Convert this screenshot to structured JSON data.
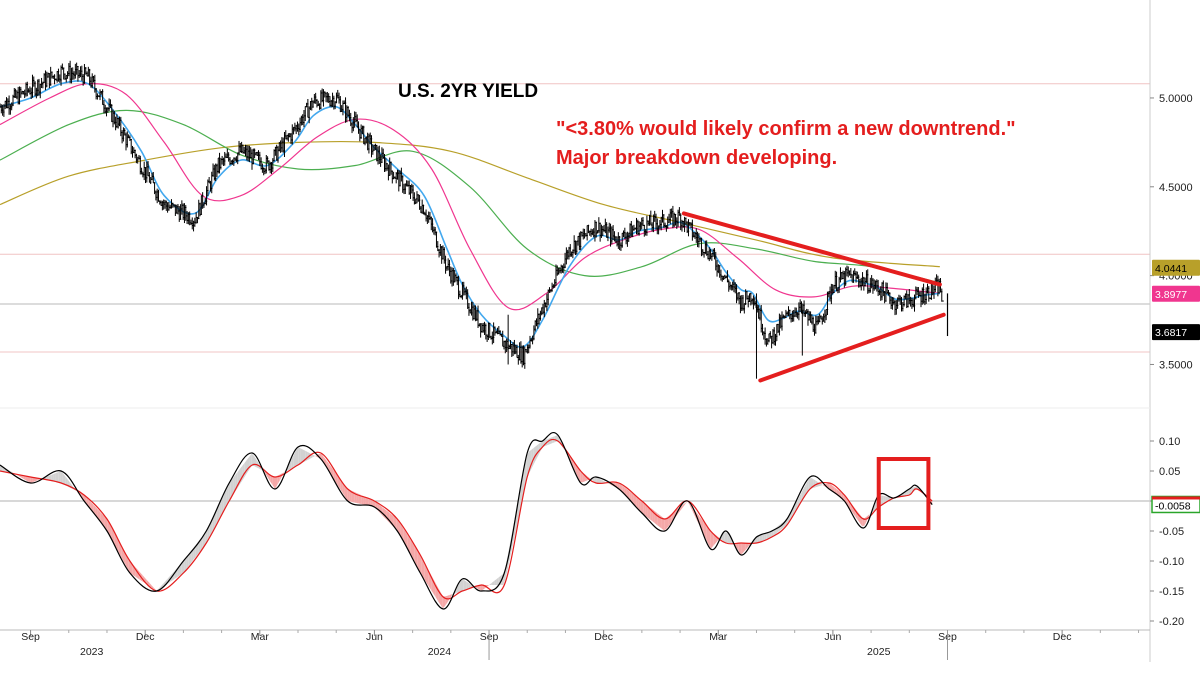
{
  "chart_data": [
    {
      "type": "line",
      "title": "U.S. 2YR YIELD",
      "annotation_lines": [
        "\"<3.80% would likely confirm a new downtrend.\"",
        "Major breakdown developing."
      ],
      "ylim": [
        3.3,
        5.45
      ],
      "y_ticks": [
        "5.0000",
        "4.5000",
        "4.0000",
        "3.5000"
      ],
      "y_tick_values": [
        5.0,
        4.5,
        4.0,
        3.5
      ],
      "horizontal_levels": [
        5.08,
        4.12,
        3.84,
        3.57
      ],
      "x_ticks": [
        "Sep",
        "Dec",
        "Mar",
        "Jun",
        "Sep",
        "Dec",
        "Mar",
        "Jun",
        "Sep",
        "Dec"
      ],
      "x_tick_months": [
        0,
        3,
        6,
        9,
        12,
        15,
        18,
        21,
        24,
        27
      ],
      "x_year_labels": [
        {
          "label": "2023",
          "month": 1.6
        },
        {
          "label": "2024",
          "month": 10.7
        },
        {
          "label": "2025",
          "month": 22.2
        }
      ],
      "x_month_range": [
        -0.8,
        29.3
      ],
      "last_values": [
        {
          "label": "4.0441",
          "value": 4.0441,
          "color": "#b8a02a"
        },
        {
          "label": "3.8977",
          "value": 3.8977,
          "color": "#f0368f"
        },
        {
          "label": "3.6817",
          "value": 3.6817,
          "color": "#000000"
        }
      ],
      "trendlines": [
        {
          "from": [
            17.1,
            4.35
          ],
          "to": [
            23.8,
            3.95
          ]
        },
        {
          "from": [
            19.1,
            3.41
          ],
          "to": [
            23.9,
            3.78
          ]
        }
      ],
      "series": [
        {
          "color": "#000000",
          "x": [
            -0.8,
            0.0,
            0.8,
            1.5,
            2.2,
            2.9,
            3.5,
            4.3,
            4.9,
            5.5,
            6.2,
            6.9,
            7.4,
            8.0,
            8.5,
            9.0,
            9.6,
            10.3,
            10.9,
            11.3,
            11.8,
            12.4,
            12.9,
            13.4,
            14.1,
            14.8,
            15.4,
            15.9,
            16.5,
            17.0,
            17.4,
            17.8,
            18.2,
            18.6,
            18.9,
            19.3,
            19.7,
            20.1,
            20.6,
            21.0,
            21.4,
            21.8,
            22.2,
            22.6,
            23.0,
            23.4,
            23.8,
            24.0
          ],
          "y": [
            4.95,
            5.05,
            5.15,
            5.12,
            4.88,
            4.62,
            4.4,
            4.32,
            4.62,
            4.7,
            4.62,
            4.82,
            4.98,
            5.0,
            4.85,
            4.7,
            4.55,
            4.38,
            4.05,
            3.9,
            3.72,
            3.62,
            3.55,
            3.82,
            4.15,
            4.28,
            4.2,
            4.28,
            4.3,
            4.33,
            4.22,
            4.12,
            3.98,
            3.85,
            3.9,
            3.62,
            3.75,
            3.82,
            3.7,
            3.95,
            4.0,
            3.97,
            3.93,
            3.85,
            3.86,
            3.9,
            3.94,
            3.68
          ]
        },
        {
          "color": "#43a8ee",
          "x": [
            -0.8,
            0.0,
            0.8,
            1.5,
            2.2,
            2.9,
            3.5,
            4.3,
            4.9,
            5.5,
            6.2,
            6.9,
            7.4,
            8.0,
            8.5,
            9.0,
            9.6,
            10.3,
            10.9,
            11.3,
            11.8,
            12.4,
            12.9,
            13.4,
            14.1,
            14.8,
            15.4,
            15.9,
            16.5,
            17.0,
            17.4,
            17.8,
            18.2,
            18.6,
            18.9,
            19.3,
            19.7,
            20.1,
            20.6,
            21.0,
            21.4,
            21.8,
            22.2,
            22.6,
            23.0,
            23.4,
            23.8
          ],
          "y": [
            4.95,
            5.0,
            5.08,
            5.08,
            4.92,
            4.7,
            4.45,
            4.35,
            4.55,
            4.65,
            4.62,
            4.75,
            4.9,
            4.95,
            4.85,
            4.72,
            4.6,
            4.45,
            4.15,
            3.95,
            3.78,
            3.66,
            3.6,
            3.75,
            4.05,
            4.22,
            4.2,
            4.25,
            4.27,
            4.3,
            4.24,
            4.15,
            4.02,
            3.92,
            3.9,
            3.75,
            3.76,
            3.8,
            3.78,
            3.9,
            3.97,
            3.96,
            3.93,
            3.87,
            3.87,
            3.89,
            3.9
          ]
        },
        {
          "color": "#f0368f",
          "x": [
            -0.8,
            0.5,
            1.5,
            2.5,
            3.5,
            4.5,
            5.5,
            6.5,
            7.5,
            8.5,
            9.5,
            10.5,
            11.5,
            12.5,
            13.5,
            14.5,
            15.5,
            16.5,
            17.5,
            18.5,
            19.5,
            20.5,
            21.5,
            22.5,
            23.8
          ],
          "y": [
            4.85,
            5.0,
            5.08,
            5.02,
            4.75,
            4.45,
            4.45,
            4.6,
            4.78,
            4.88,
            4.82,
            4.6,
            4.15,
            3.82,
            3.9,
            4.1,
            4.2,
            4.26,
            4.26,
            4.1,
            3.92,
            3.88,
            3.94,
            3.93,
            3.9
          ]
        },
        {
          "color": "#4caf50",
          "x": [
            -0.8,
            1.0,
            2.5,
            4.0,
            5.5,
            7.0,
            8.5,
            10.0,
            11.5,
            13.0,
            14.5,
            16.0,
            17.5,
            19.0,
            20.5,
            22.0,
            23.8
          ],
          "y": [
            4.65,
            4.85,
            4.93,
            4.85,
            4.68,
            4.6,
            4.62,
            4.7,
            4.5,
            4.15,
            4.0,
            4.05,
            4.18,
            4.15,
            4.08,
            4.05,
            3.96
          ]
        },
        {
          "color": "#b8a02a",
          "x": [
            -0.8,
            1.0,
            3.0,
            5.0,
            7.0,
            9.0,
            11.0,
            13.0,
            15.0,
            17.0,
            19.0,
            21.0,
            23.8
          ],
          "y": [
            4.4,
            4.56,
            4.65,
            4.72,
            4.75,
            4.75,
            4.7,
            4.55,
            4.4,
            4.3,
            4.2,
            4.1,
            4.05
          ]
        }
      ]
    },
    {
      "type": "area",
      "ylim": [
        -0.215,
        0.135
      ],
      "y_ticks": [
        "0.10",
        "0.05",
        "0.00",
        "-0.05",
        "-0.10",
        "-0.15",
        "-0.20"
      ],
      "y_tick_values": [
        0.1,
        0.05,
        0.0,
        -0.05,
        -0.1,
        -0.15,
        -0.2
      ],
      "zero_line": 0.0,
      "last_value": {
        "label": "-0.0058",
        "value": -0.0058,
        "color": "#2aa52a"
      },
      "highlight_box": {
        "x": [
          22.2,
          23.5
        ],
        "y": [
          0.07,
          -0.045
        ],
        "color": "#e41e1e"
      },
      "series": [
        {
          "color": "#000000",
          "x": [
            -0.8,
            0.0,
            0.8,
            1.4,
            2.0,
            2.6,
            3.3,
            4.0,
            4.6,
            5.2,
            5.8,
            6.4,
            7.0,
            7.6,
            8.3,
            9.0,
            9.6,
            10.2,
            10.8,
            11.3,
            11.8,
            12.4,
            13.0,
            13.4,
            13.8,
            14.4,
            14.8,
            15.4,
            16.0,
            16.6,
            17.2,
            17.8,
            18.2,
            18.6,
            19.0,
            19.4,
            19.8,
            20.4,
            20.9,
            21.3,
            21.8,
            22.2,
            22.6,
            23.0,
            23.2,
            23.6
          ],
          "y": [
            0.06,
            0.03,
            0.05,
            0.0,
            -0.05,
            -0.12,
            -0.15,
            -0.1,
            -0.05,
            0.03,
            0.08,
            0.02,
            0.09,
            0.07,
            0.0,
            -0.01,
            -0.05,
            -0.12,
            -0.18,
            -0.13,
            -0.15,
            -0.12,
            0.08,
            0.1,
            0.11,
            0.03,
            0.04,
            0.02,
            -0.02,
            -0.05,
            0.0,
            -0.08,
            -0.05,
            -0.09,
            -0.06,
            -0.05,
            -0.03,
            0.04,
            0.02,
            0.0,
            -0.045,
            0.01,
            0.005,
            0.02,
            0.025,
            -0.006
          ]
        },
        {
          "color": "#e41e1e",
          "x": [
            -0.8,
            0.0,
            0.8,
            1.4,
            2.0,
            2.6,
            3.3,
            4.0,
            4.6,
            5.2,
            5.8,
            6.4,
            7.0,
            7.6,
            8.3,
            9.0,
            9.6,
            10.2,
            10.8,
            11.3,
            11.8,
            12.4,
            13.0,
            13.4,
            13.8,
            14.4,
            14.8,
            15.4,
            16.0,
            16.6,
            17.2,
            17.8,
            18.2,
            18.6,
            19.0,
            19.4,
            19.8,
            20.4,
            20.9,
            21.3,
            21.8,
            22.2,
            22.6,
            23.0,
            23.2,
            23.6
          ],
          "y": [
            0.05,
            0.04,
            0.03,
            0.01,
            -0.03,
            -0.1,
            -0.15,
            -0.12,
            -0.07,
            0.0,
            0.06,
            0.04,
            0.06,
            0.08,
            0.02,
            0.0,
            -0.03,
            -0.09,
            -0.16,
            -0.15,
            -0.14,
            -0.14,
            0.04,
            0.09,
            0.1,
            0.05,
            0.03,
            0.03,
            0.0,
            -0.03,
            0.0,
            -0.05,
            -0.07,
            -0.07,
            -0.07,
            -0.06,
            -0.04,
            0.02,
            0.03,
            0.01,
            -0.03,
            -0.01,
            0.005,
            0.01,
            0.02,
            0.0
          ]
        }
      ]
    }
  ]
}
